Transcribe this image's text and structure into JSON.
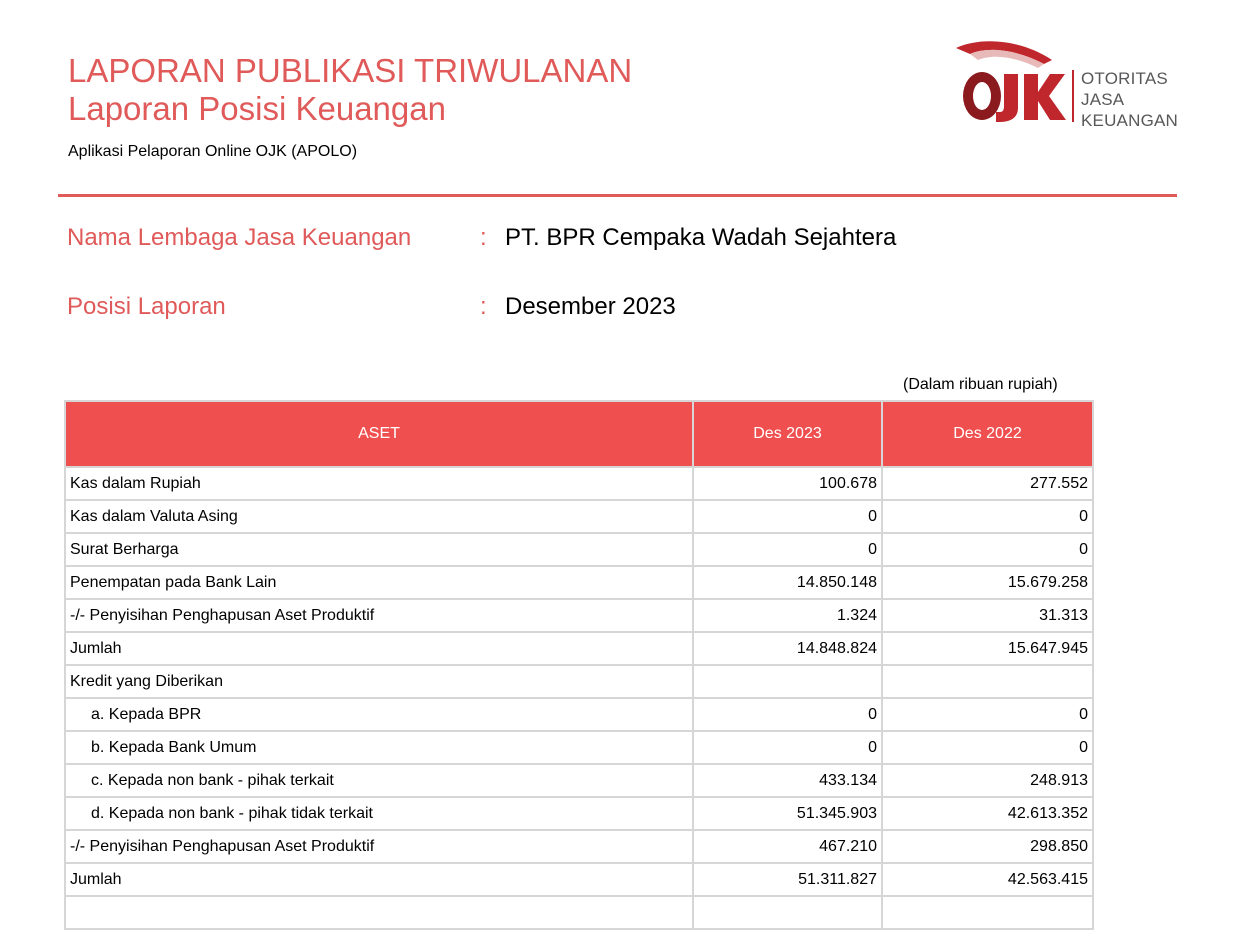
{
  "header": {
    "title_line1": "LAPORAN PUBLIKASI TRIWULANAN",
    "title_line2": "Laporan Posisi Keuangan",
    "subtitle": "Aplikasi Pelaporan Online OJK (APOLO)"
  },
  "logo": {
    "mark": "OJK",
    "line1": "OTORITAS",
    "line2": "JASA",
    "line3": "KEUANGAN",
    "colors": {
      "red": "#c0272d",
      "dark_red": "#8b1a1f",
      "gray": "#58585a"
    }
  },
  "info": {
    "institution_label": "Nama Lembaga Jasa Keuangan",
    "institution_value": "PT. BPR Cempaka Wadah Sejahtera",
    "period_label": "Posisi Laporan",
    "period_value": "Desember 2023",
    "colon": ":"
  },
  "unit_note": "(Dalam ribuan rupiah)",
  "table": {
    "headers": [
      "ASET",
      "Des 2023",
      "Des 2022"
    ],
    "rows": [
      {
        "label": "Kas dalam Rupiah",
        "v2023": "100.678",
        "v2022": "277.552"
      },
      {
        "label": "Kas dalam Valuta Asing",
        "v2023": "0",
        "v2022": "0"
      },
      {
        "label": "Surat Berharga",
        "v2023": "0",
        "v2022": "0"
      },
      {
        "label": "Penempatan pada Bank Lain",
        "v2023": "14.850.148",
        "v2022": "15.679.258"
      },
      {
        "label": "-/- Penyisihan Penghapusan Aset Produktif",
        "v2023": "1.324",
        "v2022": "31.313"
      },
      {
        "label": "Jumlah",
        "v2023": "14.848.824",
        "v2022": "15.647.945"
      },
      {
        "label": "Kredit yang Diberikan",
        "v2023": "",
        "v2022": ""
      },
      {
        "label": "a. Kepada BPR",
        "v2023": "0",
        "v2022": "0"
      },
      {
        "label": "b. Kepada Bank Umum",
        "v2023": "0",
        "v2022": "0"
      },
      {
        "label": "c. Kepada non bank - pihak terkait",
        "v2023": "433.134",
        "v2022": "248.913"
      },
      {
        "label": "d. Kepada non bank - pihak tidak terkait",
        "v2023": "51.345.903",
        "v2022": "42.613.352"
      },
      {
        "label": "-/- Penyisihan Penghapusan Aset Produktif",
        "v2023": "467.210",
        "v2022": "298.850"
      },
      {
        "label": "Jumlah",
        "v2023": "51.311.827",
        "v2022": "42.563.415"
      }
    ]
  },
  "colors": {
    "accent": "#e05a5a",
    "header_fill": "#f04f4f",
    "grid": "#d6d6d6"
  }
}
